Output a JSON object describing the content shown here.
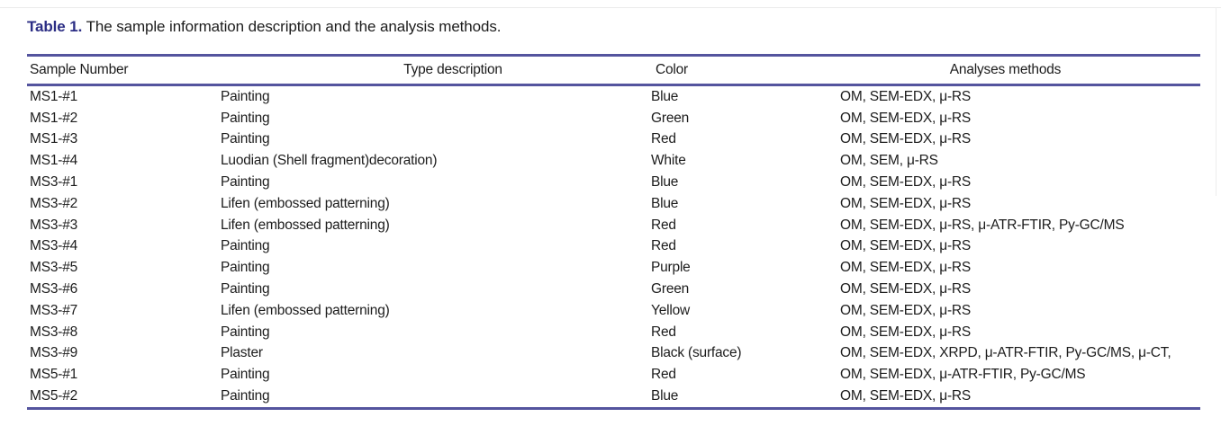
{
  "document": {
    "title_label": "Table 1.",
    "title_caption": "The sample information description and the analysis methods."
  },
  "table": {
    "columns": [
      "Sample Number",
      "Type description",
      "Color",
      "Analyses methods"
    ],
    "rows": [
      {
        "sample_number": "MS1-#1",
        "type_description": "Painting",
        "color": "Blue",
        "analyses_methods": "OM, SEM-EDX, μ-RS"
      },
      {
        "sample_number": "MS1-#2",
        "type_description": "Painting",
        "color": "Green",
        "analyses_methods": "OM, SEM-EDX, μ-RS"
      },
      {
        "sample_number": "MS1-#3",
        "type_description": "Painting",
        "color": "Red",
        "analyses_methods": "OM, SEM-EDX, μ-RS"
      },
      {
        "sample_number": "MS1-#4",
        "type_description": "Luodian (Shell fragment)decoration)",
        "color": "White",
        "analyses_methods": "OM, SEM, μ-RS"
      },
      {
        "sample_number": "MS3-#1",
        "type_description": "Painting",
        "color": "Blue",
        "analyses_methods": "OM, SEM-EDX, μ-RS"
      },
      {
        "sample_number": "MS3-#2",
        "type_description": "Lifen (embossed patterning)",
        "color": "Blue",
        "analyses_methods": "OM, SEM-EDX, μ-RS"
      },
      {
        "sample_number": "MS3-#3",
        "type_description": "Lifen (embossed patterning)",
        "color": "Red",
        "analyses_methods": "OM, SEM-EDX, μ-RS, μ-ATR-FTIR, Py-GC/MS"
      },
      {
        "sample_number": "MS3-#4",
        "type_description": "Painting",
        "color": "Red",
        "analyses_methods": "OM, SEM-EDX, μ-RS"
      },
      {
        "sample_number": "MS3-#5",
        "type_description": "Painting",
        "color": "Purple",
        "analyses_methods": "OM, SEM-EDX, μ-RS"
      },
      {
        "sample_number": "MS3-#6",
        "type_description": "Painting",
        "color": "Green",
        "analyses_methods": "OM, SEM-EDX, μ-RS"
      },
      {
        "sample_number": "MS3-#7",
        "type_description": "Lifen (embossed patterning)",
        "color": "Yellow",
        "analyses_methods": "OM, SEM-EDX, μ-RS"
      },
      {
        "sample_number": "MS3-#8",
        "type_description": "Painting",
        "color": "Red",
        "analyses_methods": "OM, SEM-EDX, μ-RS"
      },
      {
        "sample_number": "MS3-#9",
        "type_description": "Plaster",
        "color": "Black (surface)",
        "analyses_methods": "OM, SEM-EDX, XRPD, μ-ATR-FTIR, Py-GC/MS, μ-CT,"
      },
      {
        "sample_number": "MS5-#1",
        "type_description": "Painting",
        "color": "Red",
        "analyses_methods": "OM, SEM-EDX, μ-ATR-FTIR, Py-GC/MS"
      },
      {
        "sample_number": "MS5-#2",
        "type_description": "Painting",
        "color": "Blue",
        "analyses_methods": "OM, SEM-EDX, μ-RS"
      }
    ]
  },
  "colors": {
    "accent_title": "#2b2d84",
    "rule": "#54549e",
    "text": "#1c1c1c"
  }
}
